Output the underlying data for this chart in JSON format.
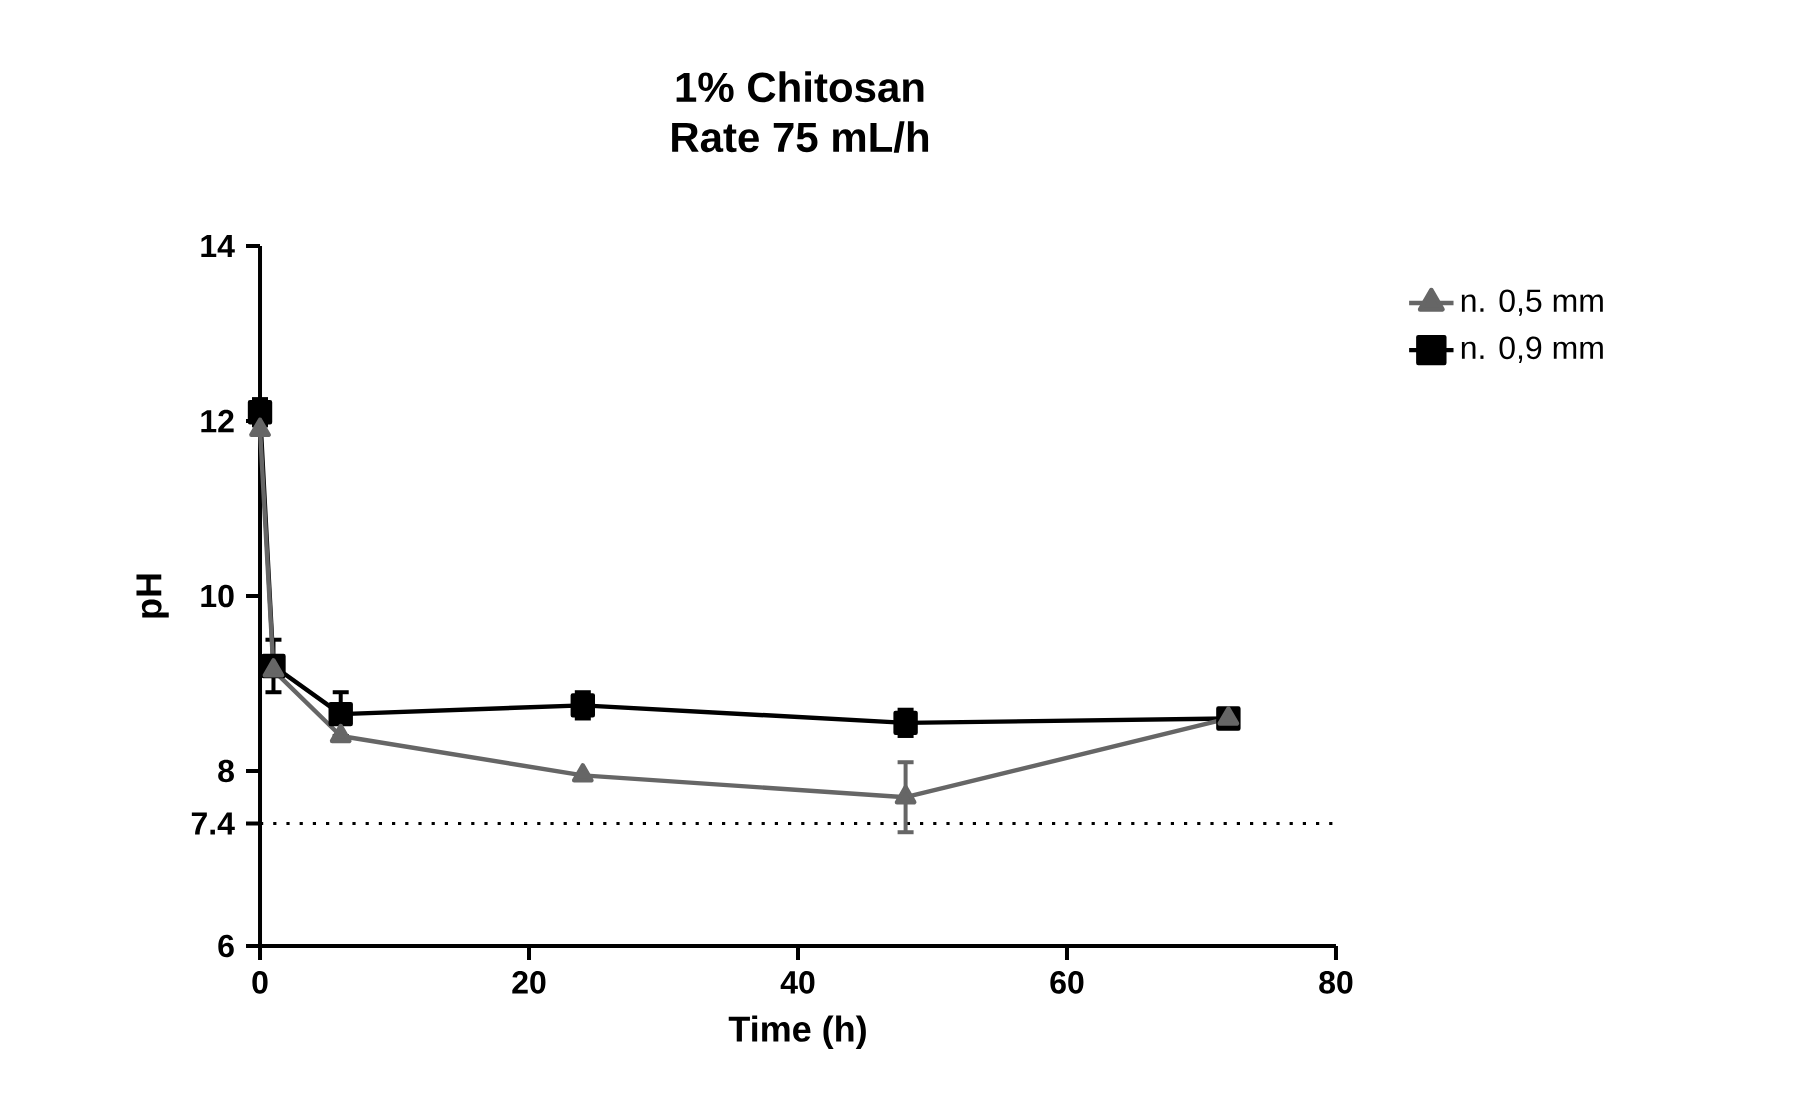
{
  "chart_data": {
    "type": "line",
    "title": "1% Chitosan",
    "subtitle": "Rate 75 mL/h",
    "xlabel": "Time (h)",
    "ylabel": "pH",
    "x": [
      0,
      1,
      6,
      24,
      48,
      72
    ],
    "series": [
      {
        "name": "n. 0,5 mm",
        "color": "#666666",
        "marker": "triangle",
        "values": [
          11.9,
          9.15,
          8.4,
          7.95,
          7.7,
          8.6
        ],
        "errors": [
          null,
          null,
          null,
          null,
          0.4,
          null
        ]
      },
      {
        "name": "n. 0,9 mm",
        "color": "#000000",
        "marker": "square",
        "values": [
          12.1,
          9.2,
          8.65,
          8.75,
          8.55,
          8.6
        ],
        "errors": [
          0.15,
          0.3,
          0.25,
          0.15,
          0.15,
          0.1
        ]
      }
    ],
    "xlim": [
      0,
      80
    ],
    "xticks": [
      0,
      20,
      40,
      60,
      80
    ],
    "ylim": [
      6,
      14
    ],
    "yticks": [
      6,
      7.4,
      8,
      10,
      12,
      14
    ],
    "ref_lines": [
      {
        "axis": "y",
        "value": 7.4,
        "color": "#000000",
        "line_style": "dotted"
      }
    ],
    "grid": false,
    "legend": "top right",
    "line_style": "solid"
  }
}
